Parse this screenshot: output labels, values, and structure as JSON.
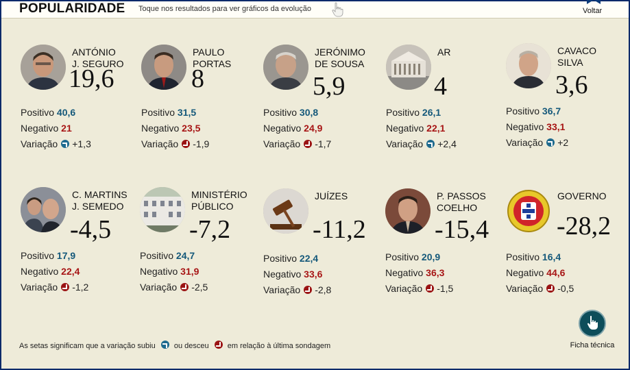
{
  "header": {
    "title": "POPULARIDADE",
    "subtitle": "Toque nos resultados para ver gráficos da evolução",
    "back_label": "Voltar"
  },
  "labels": {
    "positive": "Positivo",
    "negative": "Negativo",
    "variation": "Variação"
  },
  "cards": [
    {
      "name": "ANTÓNIO\nJ. SEGURO",
      "score": "19,6",
      "positive": "40,6",
      "negative": "21",
      "variation": "+1,3",
      "direction": "up"
    },
    {
      "name": "PAULO\nPORTAS",
      "score": "8",
      "positive": "31,5",
      "negative": "23,5",
      "variation": "-1,9",
      "direction": "down"
    },
    {
      "name": "JERÓNIMO\nDE SOUSA",
      "score": "5,9",
      "positive": "30,8",
      "negative": "24,9",
      "variation": "-1,7",
      "direction": "down"
    },
    {
      "name": "AR",
      "score": "4",
      "positive": "26,1",
      "negative": "22,1",
      "variation": "+2,4",
      "direction": "up"
    },
    {
      "name": "CAVACO\nSILVA",
      "score": "3,6",
      "positive": "36,7",
      "negative": "33,1",
      "variation": "+2",
      "direction": "up"
    },
    {
      "name": "C. MARTINS\nJ. SEMEDO",
      "score": "-4,5",
      "positive": "17,9",
      "negative": "22,4",
      "variation": "-1,2",
      "direction": "down"
    },
    {
      "name": "MINISTÉRIO\nPÚBLICO",
      "score": "-7,2",
      "positive": "24,7",
      "negative": "31,9",
      "variation": "-2,5",
      "direction": "down"
    },
    {
      "name": "JUÍZES",
      "score": "-11,2",
      "positive": "22,4",
      "negative": "33,6",
      "variation": "-2,8",
      "direction": "down"
    },
    {
      "name": "P. PASSOS\nCOELHO",
      "score": "-15,4",
      "positive": "20,9",
      "negative": "36,3",
      "variation": "-1,5",
      "direction": "down"
    },
    {
      "name": "GOVERNO",
      "score": "-28,2",
      "positive": "16,4",
      "negative": "44,6",
      "variation": "-0,5",
      "direction": "down"
    }
  ],
  "footer": {
    "text_before": "As setas significam que a variação subiu",
    "text_middle": "ou desceu",
    "text_after": "em relação à última sondagem"
  },
  "ficha_label": "Ficha técnica",
  "colors": {
    "positive": "#14587a",
    "negative": "#a71515",
    "background": "#eeebd9",
    "frame": "#0c2a6a"
  }
}
